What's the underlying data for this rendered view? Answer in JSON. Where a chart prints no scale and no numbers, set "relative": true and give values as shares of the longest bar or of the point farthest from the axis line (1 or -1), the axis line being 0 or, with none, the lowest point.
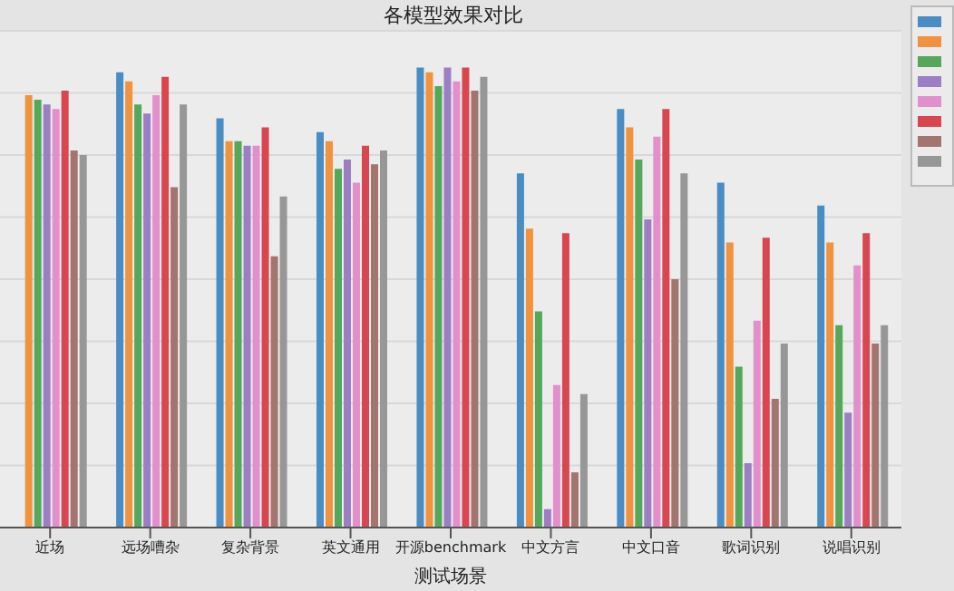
{
  "chart_data": {
    "type": "bar",
    "title": "各模型效果对比",
    "xlabel": "测试场景",
    "relative": true,
    "grid": "y",
    "categories": [
      "近场",
      "远场嘈杂",
      "复杂背景",
      "英文通用",
      "开源benchmark",
      "中文方言",
      "中文口音",
      "歌词识别",
      "说唱识别"
    ],
    "series": [
      {
        "color": "#4a8cc4",
        "values": [
          null,
          0.99,
          0.89,
          0.86,
          1.0,
          0.77,
          0.91,
          0.75,
          0.7
        ]
      },
      {
        "color": "#f0923e",
        "values": [
          0.94,
          0.97,
          0.84,
          0.84,
          0.99,
          0.65,
          0.87,
          0.62,
          0.62
        ]
      },
      {
        "color": "#55a85a",
        "values": [
          0.93,
          0.92,
          0.84,
          0.78,
          0.96,
          0.47,
          0.8,
          0.35,
          0.44
        ]
      },
      {
        "color": "#9c7fc2",
        "values": [
          0.92,
          0.9,
          0.83,
          0.8,
          1.0,
          0.04,
          0.67,
          0.14,
          0.25
        ]
      },
      {
        "color": "#e290cb",
        "values": [
          0.91,
          0.94,
          0.83,
          0.75,
          0.97,
          0.31,
          0.85,
          0.45,
          0.57
        ]
      },
      {
        "color": "#d8474f",
        "values": [
          0.95,
          0.98,
          0.87,
          0.83,
          1.0,
          0.64,
          0.91,
          0.63,
          0.64
        ]
      },
      {
        "color": "#a2756e",
        "values": [
          0.82,
          0.74,
          0.59,
          0.79,
          0.95,
          0.12,
          0.54,
          0.28,
          0.4
        ]
      },
      {
        "color": "#979797",
        "values": [
          0.81,
          0.92,
          0.72,
          0.82,
          0.98,
          0.29,
          0.77,
          0.4,
          0.44
        ]
      }
    ]
  }
}
